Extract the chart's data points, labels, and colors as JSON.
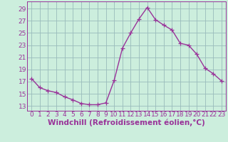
{
  "x": [
    0,
    1,
    2,
    3,
    4,
    5,
    6,
    7,
    8,
    9,
    10,
    11,
    12,
    13,
    14,
    15,
    16,
    17,
    18,
    19,
    20,
    21,
    22,
    23
  ],
  "y": [
    17.5,
    16.0,
    15.5,
    15.2,
    14.5,
    14.0,
    13.4,
    13.2,
    13.2,
    13.5,
    17.2,
    22.5,
    25.0,
    27.3,
    29.2,
    27.2,
    26.3,
    25.5,
    23.3,
    23.0,
    21.5,
    19.2,
    18.3,
    17.1
  ],
  "line_color": "#993399",
  "marker": "+",
  "marker_size": 4,
  "bg_color": "#cceedd",
  "grid_color": "#99bbbb",
  "xlabel": "Windchill (Refroidissement éolien,°C)",
  "xlabel_fontsize": 7.5,
  "xtick_labels": [
    "0",
    "1",
    "2",
    "3",
    "4",
    "5",
    "6",
    "7",
    "8",
    "9",
    "10",
    "11",
    "12",
    "13",
    "14",
    "15",
    "16",
    "17",
    "18",
    "19",
    "20",
    "21",
    "22",
    "23"
  ],
  "ytick_values": [
    13,
    15,
    17,
    19,
    21,
    23,
    25,
    27,
    29
  ],
  "ylim": [
    12.2,
    30.2
  ],
  "xlim": [
    -0.5,
    23.5
  ],
  "tick_fontsize": 6.5,
  "linewidth": 1.0
}
